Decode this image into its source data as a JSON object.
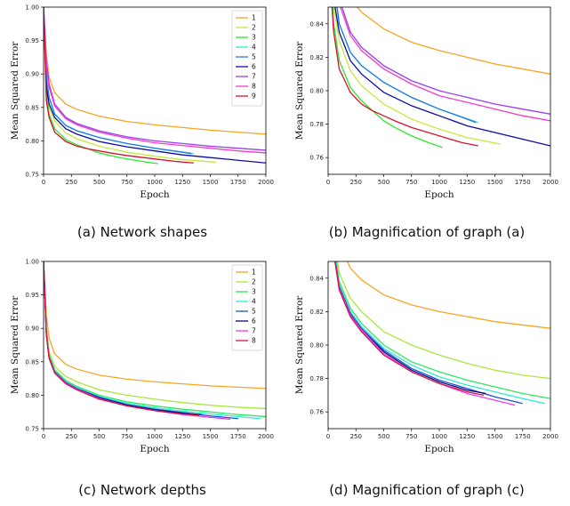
{
  "figures": [
    {
      "caption": "(a) Network shapes",
      "chart_data": {
        "type": "line",
        "xlabel": "Epoch",
        "ylabel": "Mean Squared Error",
        "xlim": [
          0,
          2000
        ],
        "ylim": [
          0.75,
          1.0
        ],
        "xticks": [
          0,
          250,
          500,
          750,
          1000,
          1250,
          1500,
          1750,
          2000
        ],
        "yticks": [
          0.75,
          0.8,
          0.85,
          0.9,
          0.95,
          1.0
        ],
        "legend": "top-right",
        "grid": false,
        "series": [
          {
            "name": "1",
            "color": "#f5a623",
            "x": [
              0,
              25,
              50,
              100,
              200,
              300,
              500,
              750,
              1000,
              1250,
              1500,
              1750,
              2000
            ],
            "y": [
              1.0,
              0.93,
              0.895,
              0.872,
              0.855,
              0.847,
              0.837,
              0.829,
              0.824,
              0.82,
              0.816,
              0.813,
              0.81
            ]
          },
          {
            "name": "2",
            "color": "#c8e83c",
            "x": [
              0,
              25,
              50,
              100,
              200,
              300,
              500,
              750,
              1000,
              1250,
              1550
            ],
            "y": [
              1.0,
              0.88,
              0.85,
              0.83,
              0.812,
              0.803,
              0.792,
              0.783,
              0.777,
              0.772,
              0.768
            ]
          },
          {
            "name": "3",
            "color": "#2ee82e",
            "x": [
              0,
              25,
              50,
              100,
              200,
              300,
              400,
              500,
              600,
              750,
              900,
              1030
            ],
            "y": [
              1.0,
              0.87,
              0.84,
              0.818,
              0.802,
              0.794,
              0.788,
              0.782,
              0.778,
              0.773,
              0.769,
              0.766
            ]
          },
          {
            "name": "4",
            "color": "#2ee8c8",
            "x": [
              0,
              25,
              50,
              100,
              200,
              300,
              500,
              750,
              1000,
              1350
            ],
            "y": [
              1.0,
              0.9,
              0.865,
              0.84,
              0.823,
              0.815,
              0.805,
              0.796,
              0.789,
              0.781
            ]
          },
          {
            "name": "5",
            "color": "#1f78f0",
            "x": [
              0,
              25,
              50,
              100,
              200,
              300,
              500,
              750,
              1000,
              1250,
              1330
            ],
            "y": [
              1.0,
              0.89,
              0.865,
              0.84,
              0.823,
              0.815,
              0.805,
              0.796,
              0.789,
              0.783,
              0.781
            ]
          },
          {
            "name": "6",
            "color": "#0a0aa8",
            "x": [
              0,
              25,
              50,
              100,
              200,
              300,
              500,
              750,
              1000,
              1250,
              1500,
              1750,
              2000
            ],
            "y": [
              1.0,
              0.88,
              0.855,
              0.835,
              0.818,
              0.81,
              0.799,
              0.791,
              0.785,
              0.779,
              0.775,
              0.771,
              0.767
            ]
          },
          {
            "name": "7",
            "color": "#9a3cf0",
            "x": [
              0,
              25,
              50,
              100,
              200,
              300,
              500,
              750,
              1000,
              1250,
              1500,
              1750,
              2000
            ],
            "y": [
              1.0,
              0.92,
              0.885,
              0.855,
              0.835,
              0.826,
              0.815,
              0.806,
              0.8,
              0.796,
              0.792,
              0.789,
              0.786
            ]
          },
          {
            "name": "8",
            "color": "#f03cc8",
            "x": [
              0,
              25,
              50,
              100,
              200,
              300,
              500,
              750,
              1000,
              1250,
              1500,
              1750,
              2000
            ],
            "y": [
              1.0,
              0.91,
              0.88,
              0.852,
              0.833,
              0.824,
              0.813,
              0.804,
              0.797,
              0.793,
              0.789,
              0.785,
              0.782
            ]
          },
          {
            "name": "9",
            "color": "#d81030",
            "x": [
              0,
              25,
              50,
              100,
              200,
              300,
              400,
              500,
              600,
              750,
              1000,
              1200,
              1350
            ],
            "y": [
              1.0,
              0.86,
              0.835,
              0.813,
              0.799,
              0.792,
              0.788,
              0.785,
              0.782,
              0.778,
              0.773,
              0.769,
              0.767
            ]
          }
        ]
      }
    },
    {
      "caption": "(b) Magnification of graph (a)",
      "chart_data": {
        "type": "line",
        "xlabel": "Epoch",
        "ylabel": "Mean Squared Error",
        "xlim": [
          0,
          2000
        ],
        "ylim": [
          0.75,
          0.85
        ],
        "xticks": [
          0,
          250,
          500,
          750,
          1000,
          1250,
          1500,
          1750,
          2000
        ],
        "yticks": [
          0.76,
          0.78,
          0.8,
          0.82,
          0.84
        ],
        "grid": false,
        "series_ref": 0
      }
    },
    {
      "caption": "(c) Network depths",
      "chart_data": {
        "type": "line",
        "xlabel": "Epoch",
        "ylabel": "Mean Squared Error",
        "xlim": [
          0,
          2000
        ],
        "ylim": [
          0.75,
          1.0
        ],
        "xticks": [
          0,
          250,
          500,
          750,
          1000,
          1250,
          1500,
          1750,
          2000
        ],
        "yticks": [
          0.75,
          0.8,
          0.85,
          0.9,
          0.95,
          1.0
        ],
        "legend": "top-right",
        "grid": false,
        "series": [
          {
            "name": "1",
            "color": "#f5a623",
            "x": [
              0,
              25,
              50,
              100,
              200,
              300,
              500,
              750,
              1000,
              1250,
              1500,
              1750,
              2000
            ],
            "y": [
              1.0,
              0.92,
              0.885,
              0.862,
              0.846,
              0.839,
              0.83,
              0.824,
              0.82,
              0.817,
              0.814,
              0.812,
              0.81
            ]
          },
          {
            "name": "2",
            "color": "#a8e83c",
            "x": [
              0,
              25,
              50,
              100,
              200,
              300,
              500,
              750,
              1000,
              1250,
              1500,
              1750,
              2000
            ],
            "y": [
              1.0,
              0.9,
              0.865,
              0.843,
              0.828,
              0.82,
              0.808,
              0.8,
              0.794,
              0.789,
              0.785,
              0.782,
              0.78
            ]
          },
          {
            "name": "3",
            "color": "#2ee85a",
            "x": [
              0,
              25,
              50,
              100,
              200,
              300,
              500,
              750,
              1000,
              1250,
              1500,
              1750,
              2000
            ],
            "y": [
              1.0,
              0.895,
              0.86,
              0.838,
              0.822,
              0.813,
              0.8,
              0.79,
              0.784,
              0.779,
              0.775,
              0.771,
              0.768
            ]
          },
          {
            "name": "4",
            "color": "#2ee8d8",
            "x": [
              0,
              25,
              50,
              100,
              200,
              300,
              500,
              750,
              1000,
              1250,
              1500,
              1750,
              1950
            ],
            "y": [
              1.0,
              0.893,
              0.858,
              0.836,
              0.82,
              0.811,
              0.798,
              0.788,
              0.781,
              0.776,
              0.772,
              0.768,
              0.765
            ]
          },
          {
            "name": "5",
            "color": "#1a50d8",
            "x": [
              0,
              25,
              50,
              100,
              200,
              300,
              500,
              750,
              1000,
              1250,
              1500,
              1750
            ],
            "y": [
              1.0,
              0.892,
              0.857,
              0.835,
              0.819,
              0.81,
              0.797,
              0.786,
              0.779,
              0.774,
              0.769,
              0.765
            ]
          },
          {
            "name": "6",
            "color": "#0a0a70",
            "x": [
              0,
              25,
              50,
              100,
              200,
              300,
              500,
              750,
              1000,
              1250,
              1420
            ],
            "y": [
              1.0,
              0.891,
              0.856,
              0.834,
              0.818,
              0.809,
              0.796,
              0.785,
              0.778,
              0.773,
              0.771
            ]
          },
          {
            "name": "7",
            "color": "#e83ce8",
            "x": [
              0,
              25,
              50,
              100,
              200,
              300,
              500,
              750,
              1000,
              1250,
              1500,
              1680
            ],
            "y": [
              1.0,
              0.891,
              0.856,
              0.834,
              0.818,
              0.809,
              0.795,
              0.784,
              0.777,
              0.771,
              0.767,
              0.764
            ]
          },
          {
            "name": "8",
            "color": "#d81048",
            "x": [
              0,
              25,
              50,
              100,
              200,
              300,
              500,
              750,
              1000,
              1250,
              1400
            ],
            "y": [
              1.0,
              0.89,
              0.855,
              0.833,
              0.817,
              0.808,
              0.794,
              0.784,
              0.777,
              0.772,
              0.77
            ]
          }
        ]
      }
    },
    {
      "caption": "(d) Magnification of graph (c)",
      "chart_data": {
        "type": "line",
        "xlabel": "Epoch",
        "ylabel": "Mean Squared Error",
        "xlim": [
          0,
          2000
        ],
        "ylim": [
          0.75,
          0.85
        ],
        "xticks": [
          0,
          250,
          500,
          750,
          1000,
          1250,
          1500,
          1750,
          2000
        ],
        "yticks": [
          0.76,
          0.78,
          0.8,
          0.82,
          0.84
        ],
        "grid": false,
        "series_ref": 2
      }
    }
  ]
}
